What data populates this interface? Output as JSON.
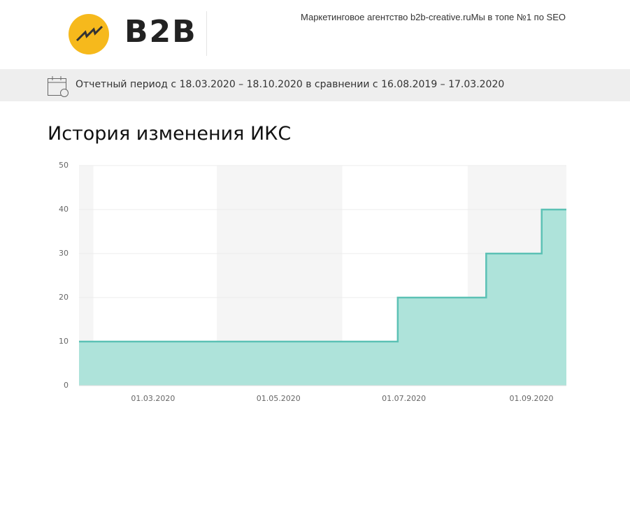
{
  "header": {
    "logo_text": "B2B",
    "tagline": "Маркетинговое агентство b2b-creative.ruМы в топе №1 по SEO"
  },
  "period": "Отчетный период с 18.03.2020 – 18.10.2020 в сравнении с 16.08.2019 – 17.03.2020",
  "chart_data": {
    "type": "step-area",
    "title": "История изменения ИКС",
    "x": [
      "2020-01-25",
      "2020-06-28",
      "2020-08-10",
      "2020-09-06",
      "2020-09-18"
    ],
    "values": [
      10,
      20,
      30,
      40,
      40
    ],
    "color": "#5cc1b5",
    "fill": "#aee3da",
    "xlim": [
      "2020-01-25",
      "2020-09-18"
    ],
    "xticks": [
      {
        "value": "2020-03-01",
        "label": "01.03.2020"
      },
      {
        "value": "2020-05-01",
        "label": "01.05.2020"
      },
      {
        "value": "2020-07-01",
        "label": "01.07.2020"
      },
      {
        "value": "2020-09-01",
        "label": "01.09.2020"
      }
    ],
    "ylim": [
      0,
      50
    ],
    "yticks": [
      0,
      10,
      20,
      30,
      40,
      50
    ],
    "grid": true
  }
}
